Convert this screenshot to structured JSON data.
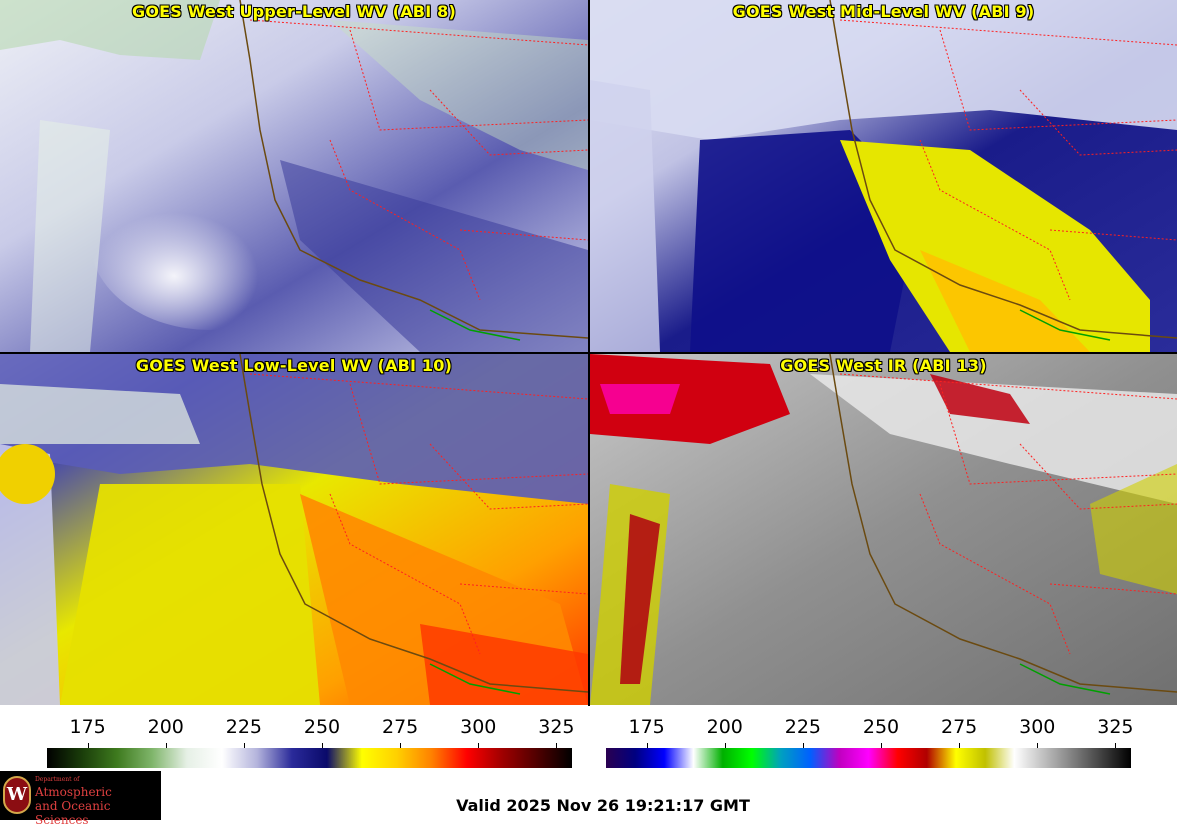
{
  "panels": {
    "upper": {
      "title": "GOES West Upper-Level WV (ABI 8)"
    },
    "mid": {
      "title": "GOES West Mid-Level WV (ABI 9)"
    },
    "low": {
      "title": "GOES West Low-Level WV (ABI 10)"
    },
    "ir": {
      "title": "GOES West IR (ABI 13)"
    }
  },
  "colorbars": {
    "wv": {
      "ticks": [
        "175",
        "200",
        "225",
        "250",
        "275",
        "300",
        "325"
      ],
      "range": [
        162,
        330
      ],
      "colors": [
        "#000000",
        "#1a3d0a",
        "#3e7a1e",
        "#7fb56a",
        "#e6f0e6",
        "#ffffff",
        "#b4b4dc",
        "#2a2a9a",
        "#0a0a6a",
        "#ffff00",
        "#ffd000",
        "#ff8000",
        "#ff0000",
        "#a00000",
        "#500000",
        "#000000"
      ]
    },
    "ir": {
      "ticks": [
        "175",
        "200",
        "225",
        "250",
        "275",
        "300",
        "325"
      ],
      "range": [
        162,
        330
      ],
      "colors": [
        "#2a0050",
        "#000080",
        "#0000ff",
        "#ffffff",
        "#00b000",
        "#00ff00",
        "#00a0c0",
        "#0060ff",
        "#c000c0",
        "#ff00ff",
        "#ff0000",
        "#b00000",
        "#ffff00",
        "#c0c000",
        "#ffffff",
        "#c0c0c0",
        "#808080",
        "#404040",
        "#000000"
      ]
    }
  },
  "logo": {
    "dept": "Department of",
    "line1": "Atmospheric",
    "line2": "and Oceanic Sciences",
    "seal": "W"
  },
  "valid_time": "Valid 2025 Nov 26 19:21:17 GMT"
}
